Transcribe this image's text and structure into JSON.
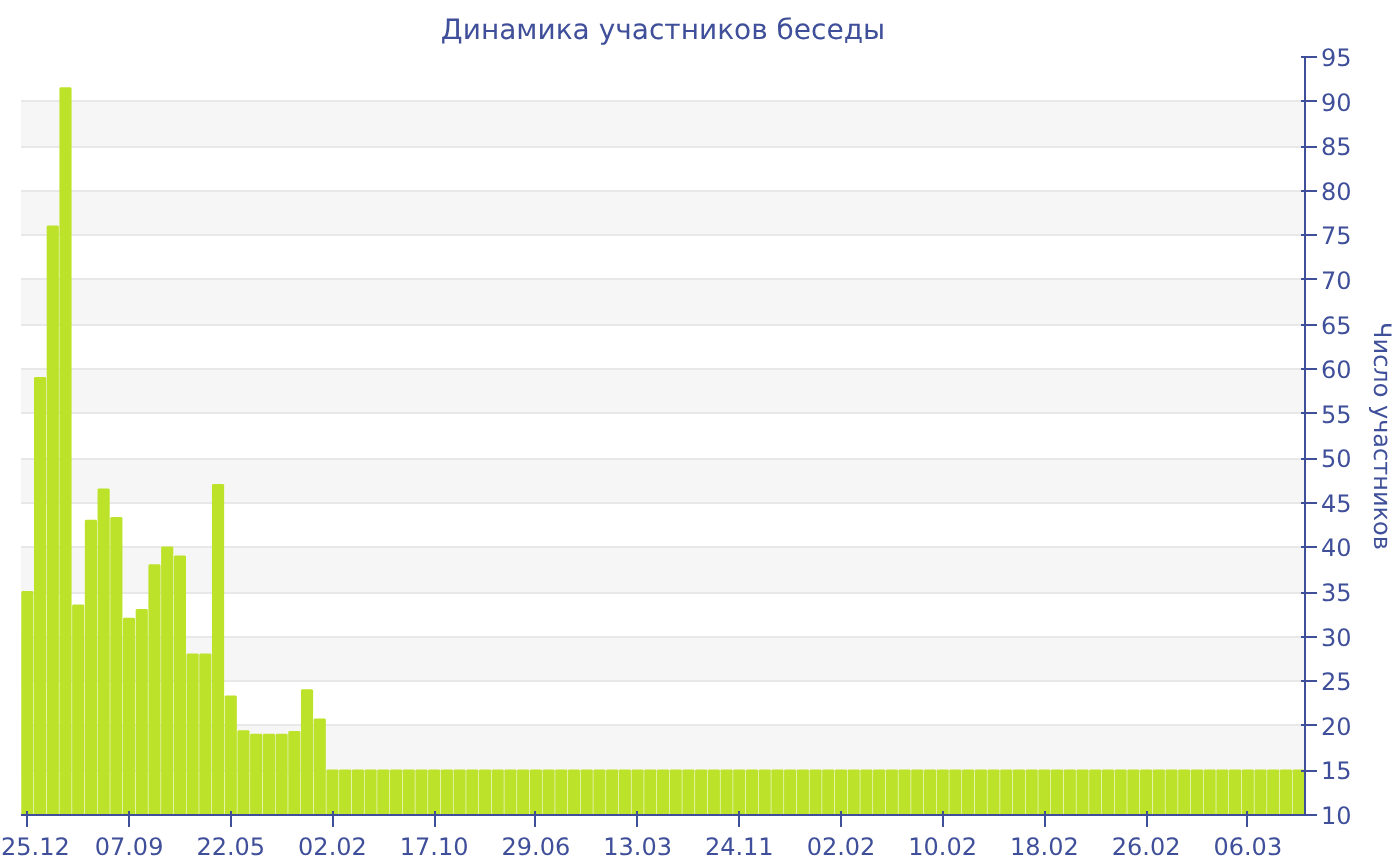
{
  "chart_data": {
    "type": "bar",
    "title": "Динамика участников беседы",
    "ylabel": "Число участников",
    "categories": [
      "25.12",
      null,
      null,
      null,
      null,
      null,
      null,
      null,
      "07.09",
      null,
      null,
      null,
      null,
      null,
      null,
      null,
      "22.05",
      null,
      null,
      null,
      null,
      null,
      null,
      null,
      "02.02",
      null,
      null,
      null,
      null,
      null,
      null,
      null,
      "17.10",
      null,
      null,
      null,
      null,
      null,
      null,
      null,
      "29.06",
      null,
      null,
      null,
      null,
      null,
      null,
      null,
      "13.03",
      null,
      null,
      null,
      null,
      null,
      null,
      null,
      "24.11",
      null,
      null,
      null,
      null,
      null,
      null,
      null,
      "02.02",
      null,
      null,
      null,
      null,
      null,
      null,
      null,
      "10.02",
      null,
      null,
      null,
      null,
      null,
      null,
      null,
      "18.02",
      null,
      null,
      null,
      null,
      null,
      null,
      null,
      "26.02",
      null,
      null,
      null,
      null,
      null,
      null,
      null,
      "06.03",
      null,
      null,
      null,
      null
    ],
    "values": [
      35,
      59,
      76,
      91.5,
      33.5,
      43,
      46.5,
      43.3,
      32,
      33,
      38,
      40,
      39,
      28,
      28,
      47,
      23.3,
      19.4,
      19,
      19,
      19,
      19.3,
      24,
      20.7,
      15,
      15,
      15,
      15,
      15,
      15,
      15,
      15,
      15,
      15,
      15,
      15,
      15,
      15,
      15,
      15,
      15,
      15,
      15,
      15,
      15,
      15,
      15,
      15,
      15,
      15,
      15,
      15,
      15,
      15,
      15,
      15,
      15,
      15,
      15,
      15,
      15,
      15,
      15,
      15,
      15,
      15,
      15,
      15,
      15,
      15,
      15,
      15,
      15,
      15,
      15,
      15,
      15,
      15,
      15,
      15,
      15,
      15,
      15,
      15,
      15,
      15,
      15,
      15,
      15,
      15,
      15,
      15,
      15,
      15,
      15,
      15,
      15,
      15,
      15,
      15,
      15
    ],
    "color": "#bde22a",
    "ylim": [
      10,
      95
    ],
    "yticks": [
      10,
      15,
      20,
      25,
      30,
      35,
      40,
      45,
      50,
      55,
      60,
      65,
      70,
      75,
      80,
      85,
      90,
      95
    ],
    "grid": "y"
  }
}
